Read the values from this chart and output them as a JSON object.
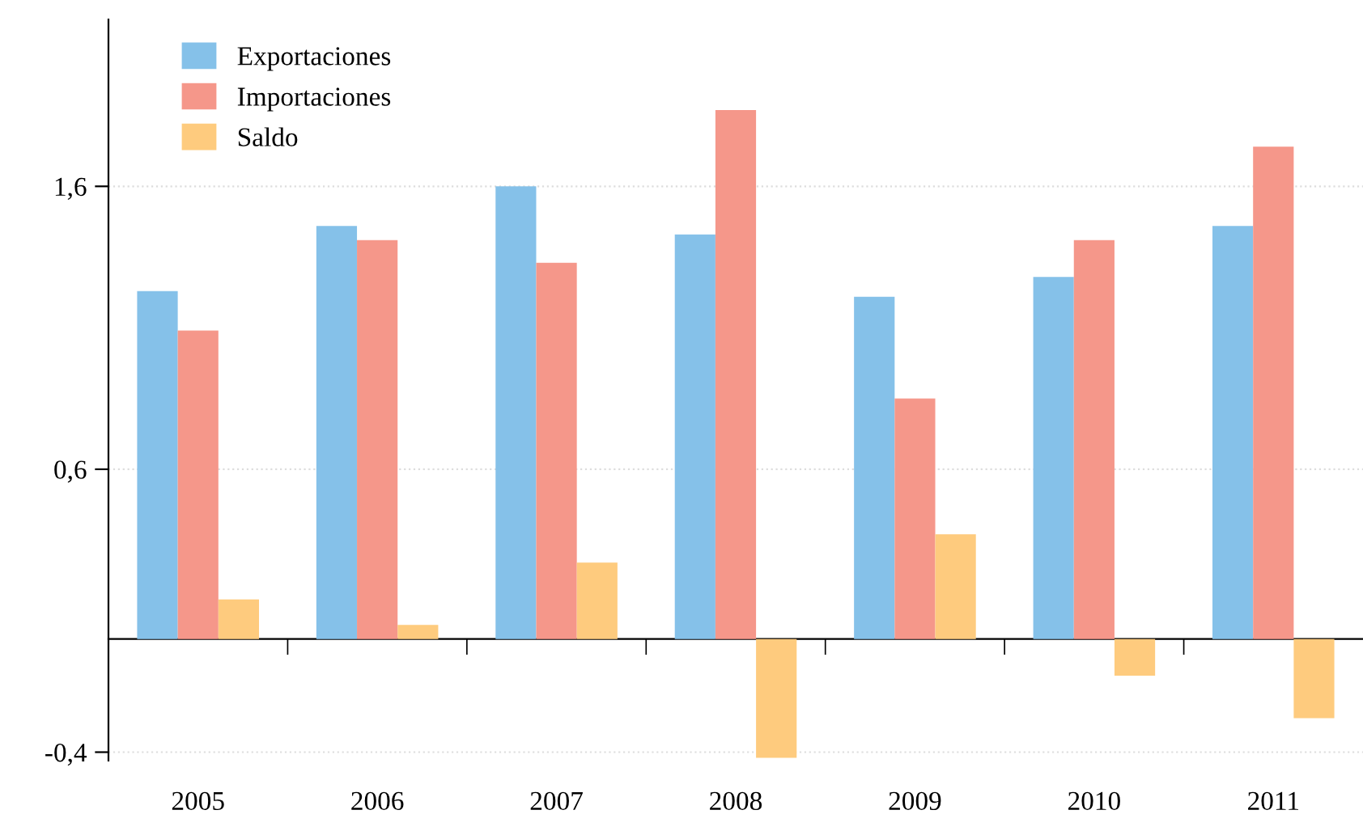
{
  "chart_data": {
    "type": "bar",
    "categories": [
      "2005",
      "2006",
      "2007",
      "2008",
      "2009",
      "2010",
      "2011"
    ],
    "series": [
      {
        "name": "Exportaciones",
        "color": "#85c1e9",
        "values": [
          1.23,
          1.46,
          1.6,
          1.43,
          1.21,
          1.28,
          1.46
        ]
      },
      {
        "name": "Importaciones",
        "color": "#f5978a",
        "values": [
          1.09,
          1.41,
          1.33,
          1.87,
          0.85,
          1.41,
          1.74
        ]
      },
      {
        "name": "Saldo",
        "color": "#fecb7e",
        "values": [
          0.14,
          0.05,
          0.27,
          -0.42,
          0.37,
          -0.13,
          -0.28
        ]
      }
    ],
    "ylim": [
      -0.43,
      2.19
    ],
    "yticks": [
      {
        "value": 1.6,
        "label": "1,6"
      },
      {
        "value": 0.6,
        "label": "0,6"
      },
      {
        "value": -0.4,
        "label": "-0,4"
      }
    ],
    "grid": "y",
    "legend": "top left"
  }
}
